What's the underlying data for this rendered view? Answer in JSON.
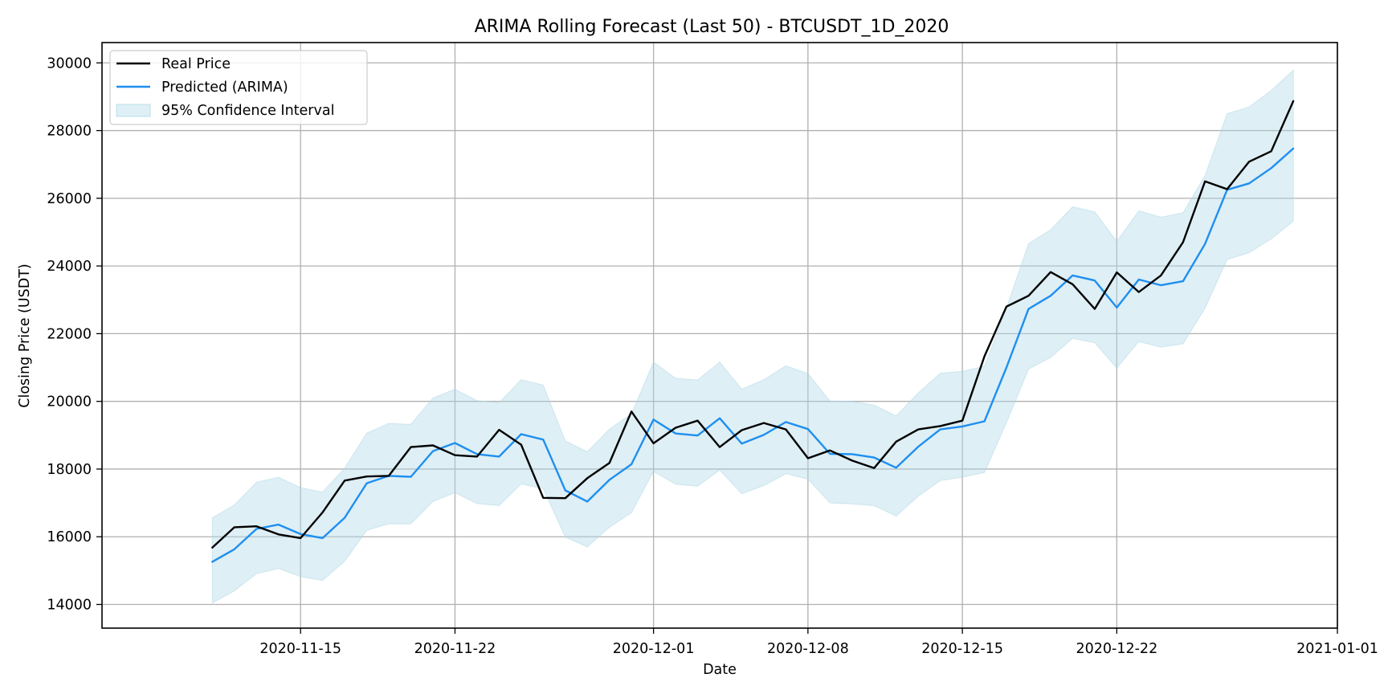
{
  "chart_data": {
    "type": "line",
    "title": "ARIMA Rolling Forecast (Last 50) - BTCUSDT_1D_2020",
    "xlabel": "Date",
    "ylabel": "Closing Price (USDT)",
    "x_start_date": "2020-11-11",
    "x": [
      "2020-11-11",
      "2020-11-12",
      "2020-11-13",
      "2020-11-14",
      "2020-11-15",
      "2020-11-16",
      "2020-11-17",
      "2020-11-18",
      "2020-11-19",
      "2020-11-20",
      "2020-11-21",
      "2020-11-22",
      "2020-11-23",
      "2020-11-24",
      "2020-11-25",
      "2020-11-26",
      "2020-11-27",
      "2020-11-28",
      "2020-11-29",
      "2020-11-30",
      "2020-12-01",
      "2020-12-02",
      "2020-12-03",
      "2020-12-04",
      "2020-12-05",
      "2020-12-06",
      "2020-12-07",
      "2020-12-08",
      "2020-12-09",
      "2020-12-10",
      "2020-12-11",
      "2020-12-12",
      "2020-12-13",
      "2020-12-14",
      "2020-12-15",
      "2020-12-16",
      "2020-12-17",
      "2020-12-18",
      "2020-12-19",
      "2020-12-20",
      "2020-12-21",
      "2020-12-22",
      "2020-12-23",
      "2020-12-24",
      "2020-12-25",
      "2020-12-26",
      "2020-12-27",
      "2020-12-28",
      "2020-12-29",
      "2020-12-30"
    ],
    "x_ticks": [
      "2020-11-15",
      "2020-11-22",
      "2020-12-01",
      "2020-12-08",
      "2020-12-15",
      "2020-12-22",
      "2021-01-01"
    ],
    "xlim": [
      "2020-11-06",
      "2021-01-01"
    ],
    "ylim": [
      13300,
      30600
    ],
    "y_ticks": [
      14000,
      16000,
      18000,
      20000,
      22000,
      24000,
      26000,
      28000,
      30000
    ],
    "grid": true,
    "legend_position": "top-left",
    "series": [
      {
        "name": "Real Price",
        "color": "#000000",
        "values": [
          15680,
          16280,
          16310,
          16070,
          15960,
          16720,
          17660,
          17780,
          17800,
          18650,
          18700,
          18410,
          18370,
          19160,
          18720,
          17150,
          17140,
          17730,
          18180,
          19700,
          18760,
          19220,
          19430,
          18650,
          19150,
          19360,
          19170,
          18320,
          18550,
          18250,
          18030,
          18810,
          19170,
          19270,
          19430,
          21330,
          22800,
          23120,
          23820,
          23460,
          22730,
          23810,
          23230,
          23720,
          24700,
          26500,
          26270,
          27080,
          27390,
          28870
        ]
      },
      {
        "name": "Predicted (ARIMA)",
        "color": "#1e8ff0",
        "values": [
          15260,
          15630,
          16230,
          16360,
          16080,
          15960,
          16560,
          17580,
          17800,
          17770,
          18530,
          18770,
          18440,
          18370,
          19030,
          18870,
          17370,
          17040,
          17680,
          18140,
          19460,
          19050,
          18990,
          19500,
          18750,
          19010,
          19390,
          19180,
          18450,
          18440,
          18340,
          18040,
          18660,
          19170,
          19260,
          19410,
          21000,
          22730,
          23120,
          23720,
          23570,
          22770,
          23600,
          23430,
          23550,
          24650,
          26250,
          26440,
          26890,
          27470
        ]
      },
      {
        "name": "95% Confidence Interval",
        "color": "#add8e6",
        "lower": [
          14040,
          14400,
          14910,
          15060,
          14820,
          14710,
          15280,
          16190,
          16380,
          16380,
          17040,
          17300,
          16980,
          16920,
          17560,
          17420,
          15990,
          15700,
          16280,
          16710,
          17930,
          17550,
          17490,
          17970,
          17270,
          17510,
          17860,
          17700,
          17000,
          16970,
          16920,
          16610,
          17200,
          17660,
          17760,
          17900,
          19370,
          20950,
          21300,
          21860,
          21730,
          20980,
          21770,
          21600,
          21700,
          22750,
          24190,
          24390,
          24800,
          25320
        ],
        "upper": [
          16560,
          16940,
          17610,
          17760,
          17450,
          17320,
          18030,
          19060,
          19350,
          19320,
          20100,
          20360,
          20020,
          19960,
          20640,
          20480,
          18830,
          18510,
          19180,
          19630,
          21160,
          20680,
          20630,
          21160,
          20360,
          20640,
          21050,
          20820,
          20010,
          20000,
          19890,
          19570,
          20250,
          20830,
          20890,
          21030,
          22760,
          24660,
          25070,
          25750,
          25600,
          24730,
          25630,
          25440,
          25570,
          26670,
          28500,
          28700,
          29180,
          29790
        ]
      }
    ]
  }
}
